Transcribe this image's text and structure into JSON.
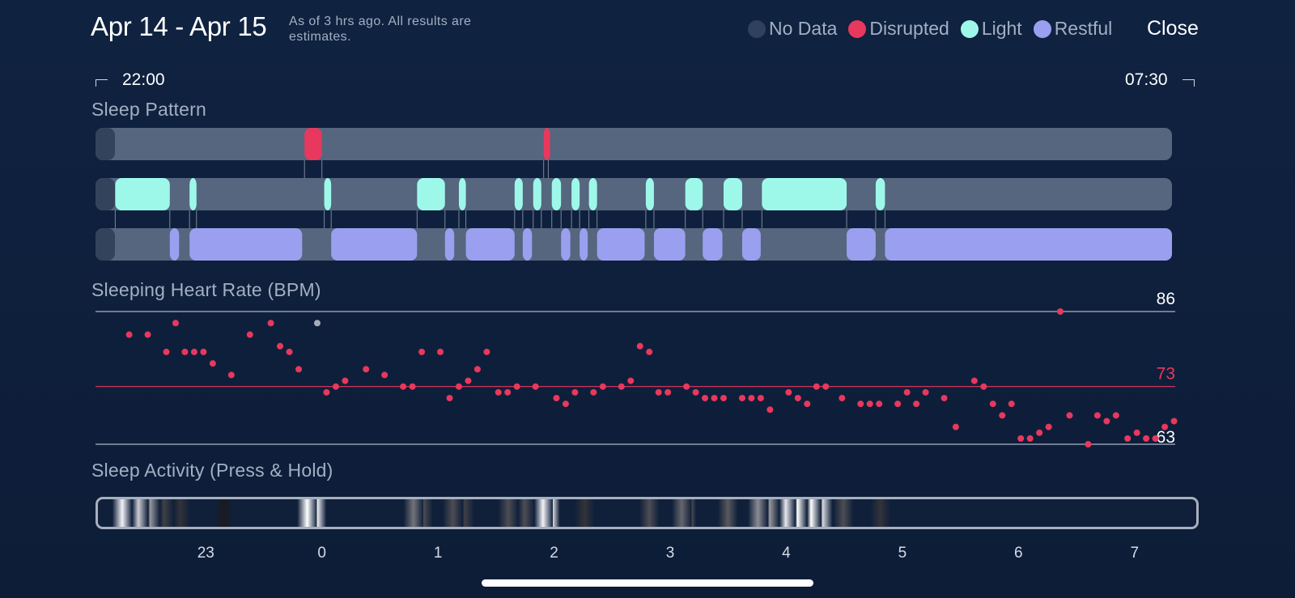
{
  "header": {
    "title": "Apr 14 - Apr 15",
    "subtitle": "As of 3 hrs ago. All results are estimates.",
    "close_label": "Close"
  },
  "legend": [
    {
      "label": "No Data",
      "color": "#2f4060"
    },
    {
      "label": "Disrupted",
      "color": "#e8385d"
    },
    {
      "label": "Light",
      "color": "#9ef8ea"
    },
    {
      "label": "Restful",
      "color": "#9aa0ef"
    }
  ],
  "range": {
    "start": "22:00",
    "end": "07:30"
  },
  "sleep_pattern": {
    "label": "Sleep Pattern",
    "colors": {
      "track": "#55667e",
      "no_data": "#33435c",
      "disrupted": "#e8385d",
      "light": "#9ef8ea",
      "restful": "#9aa0ef"
    },
    "segments_hours": {
      "disrupted": [
        [
          -0.15,
          0.0
        ],
        [
          1.91,
          1.95
        ]
      ],
      "light": [
        [
          -1.78,
          -1.31
        ],
        [
          -1.14,
          -1.08
        ],
        [
          0.02,
          0.08
        ],
        [
          0.82,
          1.06
        ],
        [
          1.18,
          1.24
        ],
        [
          1.66,
          1.73
        ],
        [
          1.82,
          1.89
        ],
        [
          1.98,
          2.06
        ],
        [
          2.15,
          2.22
        ],
        [
          2.3,
          2.37
        ],
        [
          2.79,
          2.86
        ],
        [
          3.13,
          3.28
        ],
        [
          3.46,
          3.62
        ],
        [
          3.79,
          4.52
        ],
        [
          4.77,
          4.85
        ]
      ],
      "restful": [
        [
          -1.31,
          -1.23
        ],
        [
          -1.14,
          -0.17
        ],
        [
          0.08,
          0.82
        ],
        [
          1.06,
          1.14
        ],
        [
          1.24,
          1.66
        ],
        [
          1.73,
          1.81
        ],
        [
          2.06,
          2.14
        ],
        [
          2.22,
          2.29
        ],
        [
          2.37,
          2.78
        ],
        [
          2.86,
          3.13
        ],
        [
          3.28,
          3.45
        ],
        [
          3.62,
          3.78
        ],
        [
          4.52,
          4.77
        ],
        [
          4.85,
          7.35
        ]
      ]
    }
  },
  "heart_rate": {
    "label": "Sleeping Heart Rate (BPM)",
    "max_label": "86",
    "avg_label": "73",
    "min_label": "63",
    "colors": {
      "point": "#e8385d",
      "no_data_point": "#a6acb6",
      "line": "#8f9bb0",
      "avg_line": "#e8385d"
    }
  },
  "chart_data": {
    "type": "scatter",
    "title": "Sleeping Heart Rate (BPM)",
    "x_unit": "hour",
    "xlim": [
      -1.95,
      7.35
    ],
    "ylim": [
      63,
      86
    ],
    "reference_lines": {
      "max": 86,
      "avg": 73,
      "min": 63
    },
    "points": [
      [
        -1.66,
        82
      ],
      [
        -1.5,
        82
      ],
      [
        -1.34,
        79
      ],
      [
        -1.26,
        84
      ],
      [
        -1.18,
        79
      ],
      [
        -1.1,
        79
      ],
      [
        -1.02,
        79
      ],
      [
        -0.94,
        77
      ],
      [
        -0.78,
        75
      ],
      [
        -0.62,
        82
      ],
      [
        -0.44,
        84
      ],
      [
        -0.36,
        80
      ],
      [
        -0.28,
        79
      ],
      [
        -0.2,
        76
      ],
      [
        0.04,
        72
      ],
      [
        0.12,
        73
      ],
      [
        0.2,
        74
      ],
      [
        0.38,
        76
      ],
      [
        0.54,
        75
      ],
      [
        0.7,
        73
      ],
      [
        0.78,
        73
      ],
      [
        0.86,
        79
      ],
      [
        1.02,
        79
      ],
      [
        1.1,
        71
      ],
      [
        1.18,
        73
      ],
      [
        1.26,
        74
      ],
      [
        1.34,
        76
      ],
      [
        1.42,
        79
      ],
      [
        1.52,
        72
      ],
      [
        1.6,
        72
      ],
      [
        1.68,
        73
      ],
      [
        1.84,
        73
      ],
      [
        2.02,
        71
      ],
      [
        2.1,
        70
      ],
      [
        2.18,
        72
      ],
      [
        2.34,
        72
      ],
      [
        2.42,
        73
      ],
      [
        2.58,
        73
      ],
      [
        2.66,
        74
      ],
      [
        2.74,
        80
      ],
      [
        2.82,
        79
      ],
      [
        2.9,
        72
      ],
      [
        2.98,
        72
      ],
      [
        3.14,
        73
      ],
      [
        3.22,
        72
      ],
      [
        3.3,
        71
      ],
      [
        3.38,
        71
      ],
      [
        3.46,
        71
      ],
      [
        3.62,
        71
      ],
      [
        3.7,
        71
      ],
      [
        3.78,
        71
      ],
      [
        3.86,
        69
      ],
      [
        4.02,
        72
      ],
      [
        4.1,
        71
      ],
      [
        4.18,
        70
      ],
      [
        4.26,
        73
      ],
      [
        4.34,
        73
      ],
      [
        4.48,
        71
      ],
      [
        4.64,
        70
      ],
      [
        4.72,
        70
      ],
      [
        4.8,
        70
      ],
      [
        4.96,
        70
      ],
      [
        5.04,
        72
      ],
      [
        5.12,
        70
      ],
      [
        5.2,
        72
      ],
      [
        5.36,
        71
      ],
      [
        5.46,
        66
      ],
      [
        5.62,
        74
      ],
      [
        5.7,
        73
      ],
      [
        5.78,
        70
      ],
      [
        5.86,
        68
      ],
      [
        5.94,
        70
      ],
      [
        6.02,
        64
      ],
      [
        6.1,
        64
      ],
      [
        6.18,
        65
      ],
      [
        6.26,
        66
      ],
      [
        6.36,
        86
      ],
      [
        6.44,
        68
      ],
      [
        6.6,
        63
      ],
      [
        6.68,
        68
      ],
      [
        6.76,
        67
      ],
      [
        6.84,
        68
      ],
      [
        6.94,
        64
      ],
      [
        7.02,
        65
      ],
      [
        7.1,
        64
      ],
      [
        7.18,
        64
      ],
      [
        7.26,
        66
      ],
      [
        7.34,
        67
      ]
    ],
    "no_data_points": [
      [
        -0.04,
        84
      ]
    ]
  },
  "sleep_activity": {
    "label": "Sleep Activity (Press & Hold)",
    "intensity_bands": [
      [
        -1.74,
        0.95
      ],
      [
        -1.6,
        0.8
      ],
      [
        -1.5,
        0.6
      ],
      [
        -1.38,
        0.25
      ],
      [
        -1.24,
        0.2
      ],
      [
        -0.86,
        0.1
      ],
      [
        -0.14,
        1.0
      ],
      [
        -0.06,
        0.95
      ],
      [
        0.78,
        0.45
      ],
      [
        0.86,
        0.3
      ],
      [
        1.12,
        0.3
      ],
      [
        1.22,
        0.25
      ],
      [
        1.6,
        0.3
      ],
      [
        1.74,
        0.3
      ],
      [
        1.9,
        0.95
      ],
      [
        1.96,
        0.85
      ],
      [
        2.26,
        0.2
      ],
      [
        2.82,
        0.3
      ],
      [
        3.1,
        0.4
      ],
      [
        3.14,
        0.3
      ],
      [
        3.5,
        0.35
      ],
      [
        3.76,
        0.55
      ],
      [
        3.86,
        0.6
      ],
      [
        4.0,
        0.9
      ],
      [
        4.1,
        1.0
      ],
      [
        4.22,
        1.0
      ],
      [
        4.32,
        0.85
      ],
      [
        4.5,
        0.3
      ],
      [
        4.82,
        0.2
      ]
    ]
  },
  "x_axis": {
    "hour_labels": [
      {
        "h": -1,
        "label": "23"
      },
      {
        "h": 0,
        "label": "0"
      },
      {
        "h": 1,
        "label": "1"
      },
      {
        "h": 2,
        "label": "2"
      },
      {
        "h": 3,
        "label": "3"
      },
      {
        "h": 4,
        "label": "4"
      },
      {
        "h": 5,
        "label": "5"
      },
      {
        "h": 6,
        "label": "6"
      },
      {
        "h": 7,
        "label": "7"
      }
    ]
  }
}
